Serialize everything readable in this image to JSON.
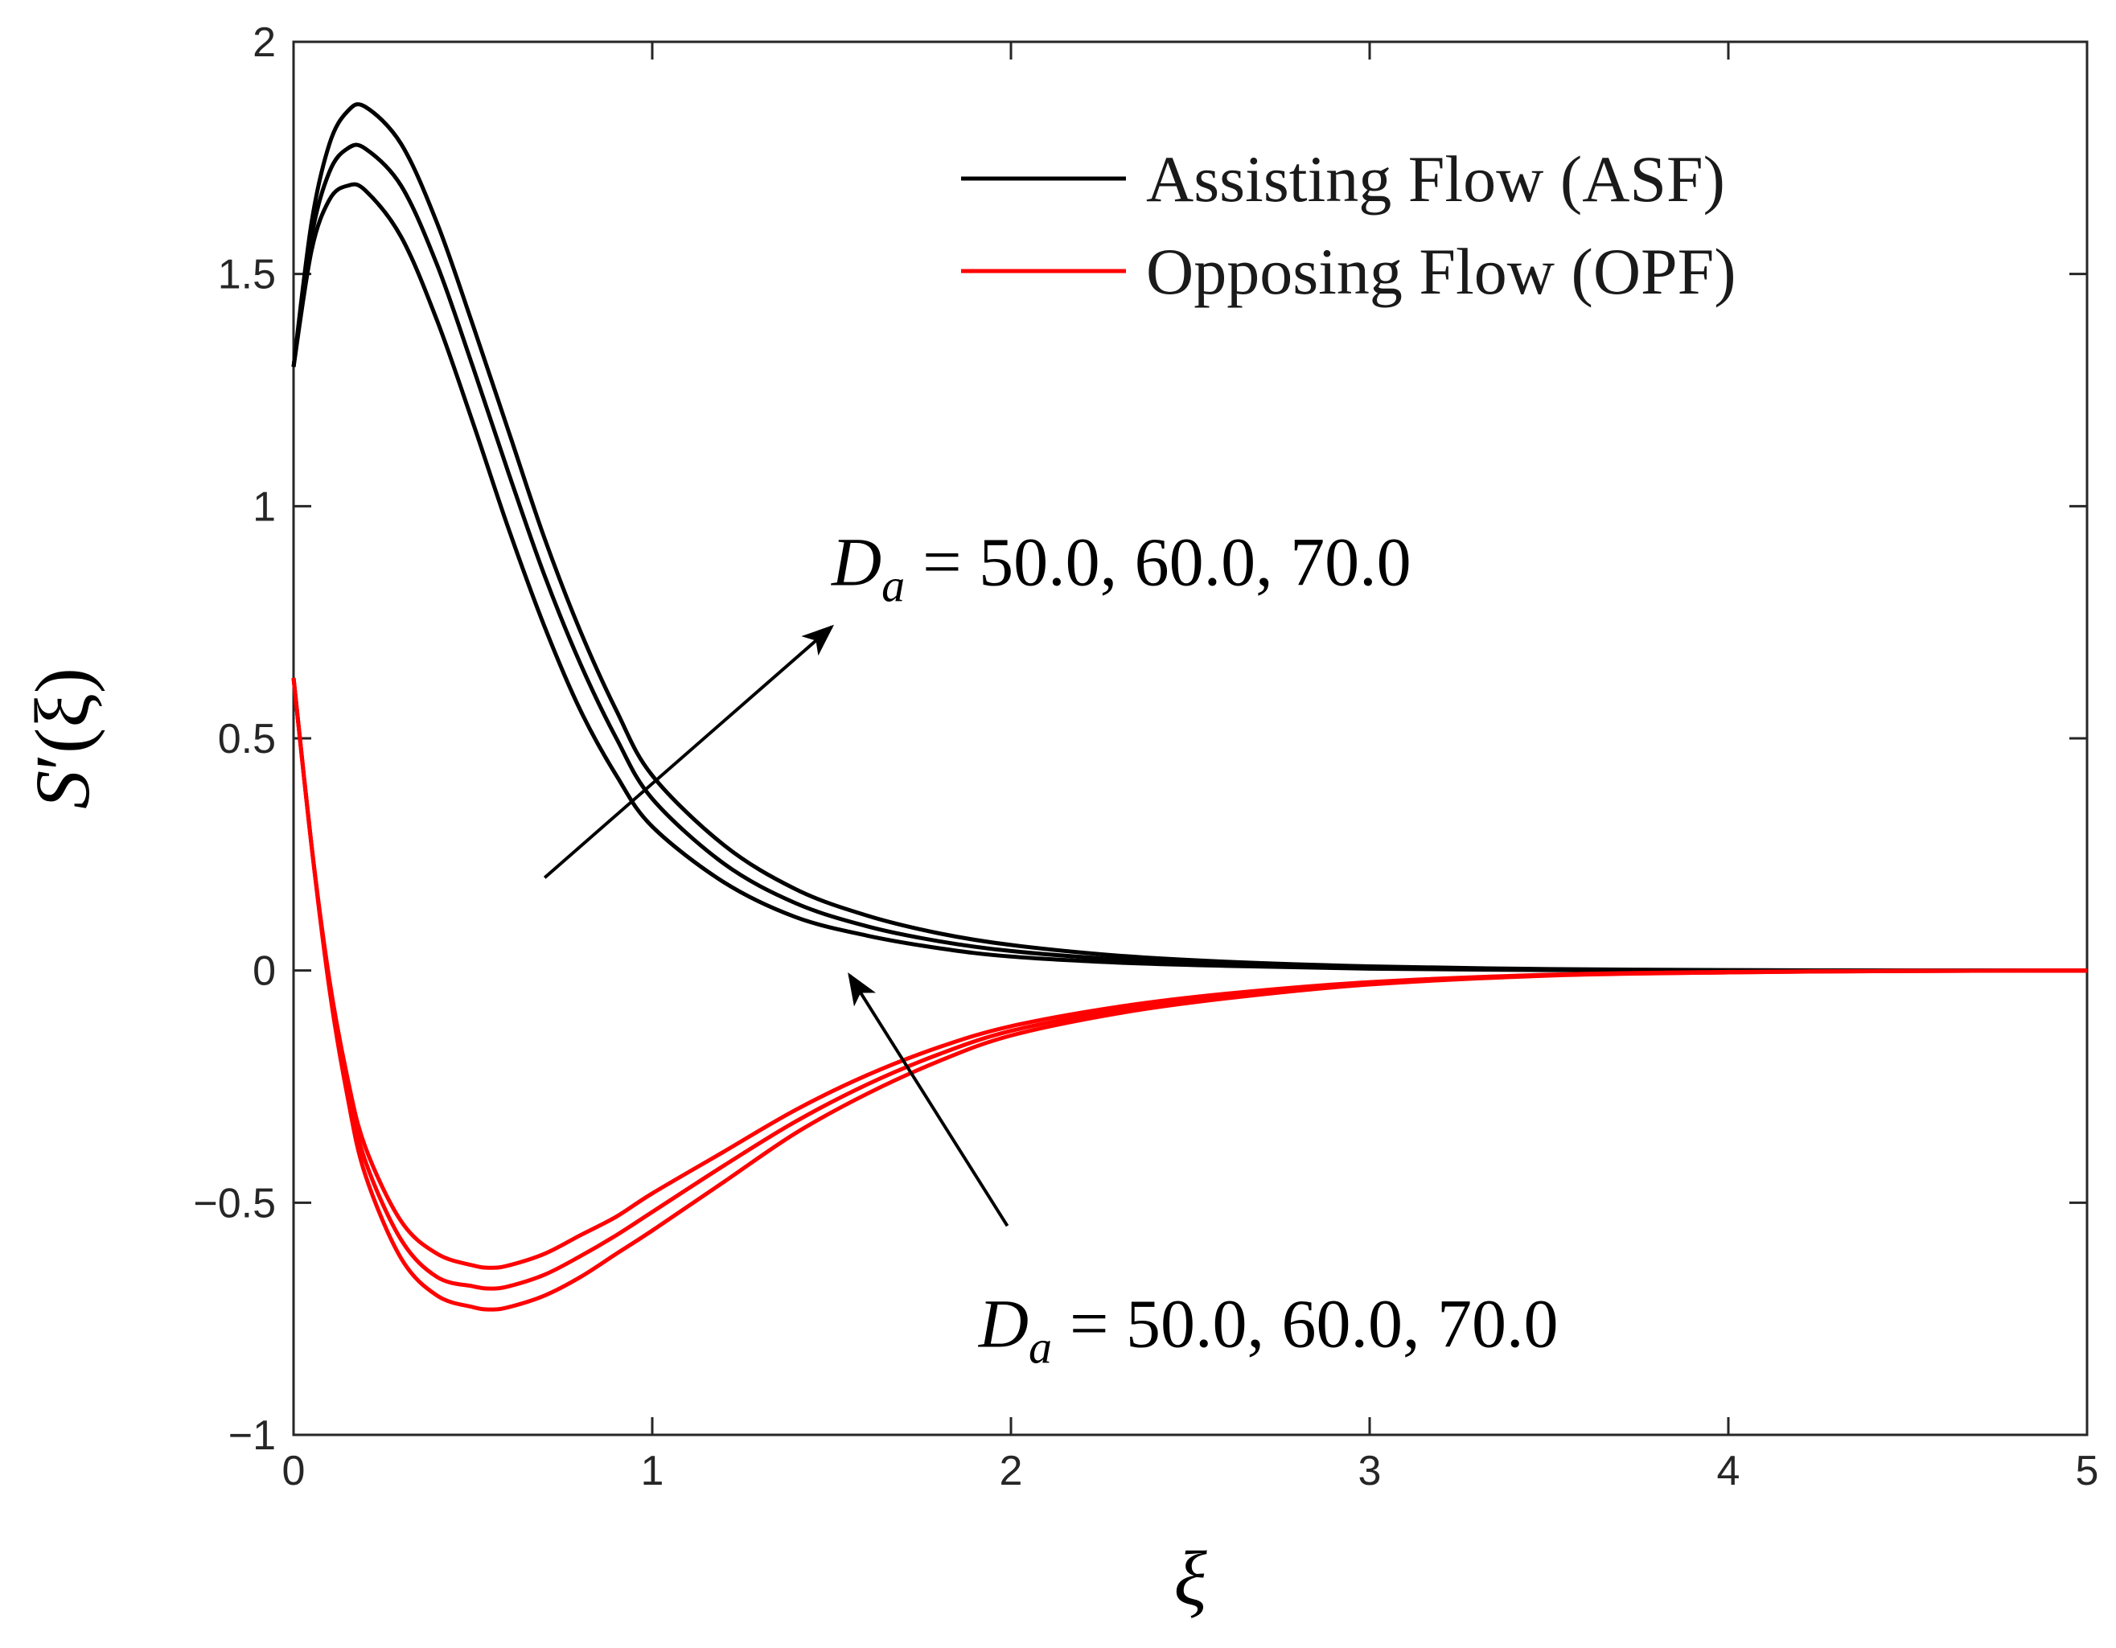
{
  "chart_data": {
    "type": "line",
    "title": "",
    "xlabel": "ξ",
    "ylabel": {
      "symbol": "S",
      "prime": "′",
      "arg": "(ξ)"
    },
    "xlim": [
      0,
      5
    ],
    "ylim": [
      -1,
      2
    ],
    "grid": false,
    "legend_position": "top-right",
    "x_ticks": [
      {
        "value": 0,
        "label": "0"
      },
      {
        "value": 1,
        "label": "1"
      },
      {
        "value": 2,
        "label": "2"
      },
      {
        "value": 3,
        "label": "3"
      },
      {
        "value": 4,
        "label": "4"
      },
      {
        "value": 5,
        "label": "5"
      }
    ],
    "y_ticks": [
      {
        "value": -1,
        "label": "−1"
      },
      {
        "value": -0.5,
        "label": "−0.5"
      },
      {
        "value": 0,
        "label": "0"
      },
      {
        "value": 0.5,
        "label": "0.5"
      },
      {
        "value": 1,
        "label": "1"
      },
      {
        "value": 1.5,
        "label": "1.5"
      },
      {
        "value": 2,
        "label": "2"
      }
    ],
    "legend": [
      {
        "label": "Assisting Flow (ASF)",
        "color": "#000000"
      },
      {
        "label": "Opposing Flow (OPF)",
        "color": "#ff0000"
      }
    ],
    "series": [
      {
        "name": "ASF, Da = 50.0",
        "group": "ASF",
        "color": "#000000",
        "x": [
          0,
          0.05,
          0.1,
          0.15,
          0.2,
          0.3,
          0.4,
          0.5,
          0.6,
          0.7,
          0.8,
          0.9,
          1.0,
          1.2,
          1.4,
          1.6,
          1.8,
          2.0,
          2.3,
          2.6,
          3.0,
          3.5,
          4.0,
          4.5,
          5.0
        ],
        "y": [
          1.3,
          1.55,
          1.66,
          1.69,
          1.68,
          1.58,
          1.4,
          1.18,
          0.95,
          0.74,
          0.56,
          0.42,
          0.31,
          0.19,
          0.115,
          0.075,
          0.048,
          0.03,
          0.017,
          0.01,
          0.004,
          0.001,
          0.0,
          0.0,
          0.0
        ]
      },
      {
        "name": "ASF, Da = 60.0",
        "group": "ASF",
        "color": "#000000",
        "x": [
          0,
          0.05,
          0.1,
          0.15,
          0.2,
          0.3,
          0.4,
          0.5,
          0.6,
          0.7,
          0.8,
          0.9,
          1.0,
          1.2,
          1.4,
          1.6,
          1.8,
          2.0,
          2.3,
          2.6,
          3.0,
          3.5,
          4.0,
          4.5,
          5.0
        ],
        "y": [
          1.3,
          1.58,
          1.72,
          1.77,
          1.77,
          1.69,
          1.52,
          1.3,
          1.07,
          0.85,
          0.66,
          0.5,
          0.37,
          0.23,
          0.145,
          0.095,
          0.063,
          0.042,
          0.024,
          0.014,
          0.006,
          0.002,
          0.0,
          0.0,
          0.0
        ]
      },
      {
        "name": "ASF, Da = 70.0",
        "group": "ASF",
        "color": "#000000",
        "x": [
          0,
          0.05,
          0.1,
          0.15,
          0.2,
          0.3,
          0.4,
          0.5,
          0.6,
          0.7,
          0.8,
          0.9,
          1.0,
          1.2,
          1.4,
          1.6,
          1.8,
          2.0,
          2.3,
          2.6,
          3.0,
          3.5,
          4.0,
          4.5,
          5.0
        ],
        "y": [
          1.3,
          1.61,
          1.78,
          1.85,
          1.86,
          1.78,
          1.61,
          1.39,
          1.16,
          0.93,
          0.73,
          0.56,
          0.42,
          0.27,
          0.175,
          0.118,
          0.08,
          0.055,
          0.032,
          0.019,
          0.009,
          0.003,
          0.001,
          0.0,
          0.0
        ]
      },
      {
        "name": "OPF, Da = 50.0",
        "group": "OPF",
        "color": "#ff0000",
        "x": [
          0,
          0.05,
          0.1,
          0.15,
          0.2,
          0.3,
          0.4,
          0.5,
          0.55,
          0.6,
          0.7,
          0.8,
          0.9,
          1.0,
          1.2,
          1.4,
          1.6,
          1.8,
          2.0,
          2.3,
          2.6,
          3.0,
          3.5,
          4.0,
          4.5,
          5.0
        ],
        "y": [
          0.63,
          0.27,
          -0.02,
          -0.23,
          -0.38,
          -0.54,
          -0.61,
          -0.635,
          -0.64,
          -0.635,
          -0.61,
          -0.57,
          -0.53,
          -0.48,
          -0.39,
          -0.3,
          -0.225,
          -0.165,
          -0.12,
          -0.078,
          -0.05,
          -0.025,
          -0.009,
          -0.003,
          -0.001,
          0.0
        ]
      },
      {
        "name": "OPF, Da = 60.0",
        "group": "OPF",
        "color": "#ff0000",
        "x": [
          0,
          0.05,
          0.1,
          0.15,
          0.2,
          0.3,
          0.4,
          0.5,
          0.55,
          0.6,
          0.7,
          0.8,
          0.9,
          1.0,
          1.2,
          1.4,
          1.6,
          1.8,
          2.0,
          2.3,
          2.6,
          3.0,
          3.5,
          4.0,
          4.5,
          5.0
        ],
        "y": [
          0.63,
          0.27,
          -0.03,
          -0.25,
          -0.41,
          -0.58,
          -0.66,
          -0.68,
          -0.685,
          -0.68,
          -0.655,
          -0.615,
          -0.57,
          -0.52,
          -0.42,
          -0.325,
          -0.245,
          -0.18,
          -0.13,
          -0.085,
          -0.055,
          -0.028,
          -0.01,
          -0.004,
          -0.001,
          0.0
        ]
      },
      {
        "name": "OPF, Da = 70.0",
        "group": "OPF",
        "color": "#ff0000",
        "x": [
          0,
          0.05,
          0.1,
          0.15,
          0.2,
          0.3,
          0.4,
          0.5,
          0.55,
          0.6,
          0.7,
          0.8,
          0.9,
          1.0,
          1.2,
          1.4,
          1.6,
          1.8,
          2.0,
          2.3,
          2.6,
          3.0,
          3.5,
          4.0,
          4.5,
          5.0
        ],
        "y": [
          0.63,
          0.27,
          -0.04,
          -0.27,
          -0.44,
          -0.62,
          -0.7,
          -0.725,
          -0.73,
          -0.725,
          -0.7,
          -0.66,
          -0.61,
          -0.56,
          -0.455,
          -0.35,
          -0.265,
          -0.195,
          -0.14,
          -0.092,
          -0.06,
          -0.03,
          -0.011,
          -0.004,
          -0.001,
          0.0
        ]
      }
    ],
    "annotations": [
      {
        "text_symbol": "D",
        "text_subscript": "a",
        "text_value": "= 50.0, 60.0, 70.0",
        "target": "ASF",
        "direction": "increasing Da",
        "arrow_from": [
          0.7,
          0.2
        ],
        "arrow_to": [
          1.5,
          0.74
        ],
        "label_anchor": [
          1.5,
          0.83
        ]
      },
      {
        "text_symbol": "D",
        "text_subscript": "a",
        "text_value": "= 50.0, 60.0, 70.0",
        "target": "OPF",
        "direction": "increasing Da",
        "arrow_from": [
          1.99,
          -0.55
        ],
        "arrow_to": [
          1.55,
          -0.01
        ],
        "label_anchor": [
          1.91,
          -0.81
        ]
      }
    ]
  }
}
